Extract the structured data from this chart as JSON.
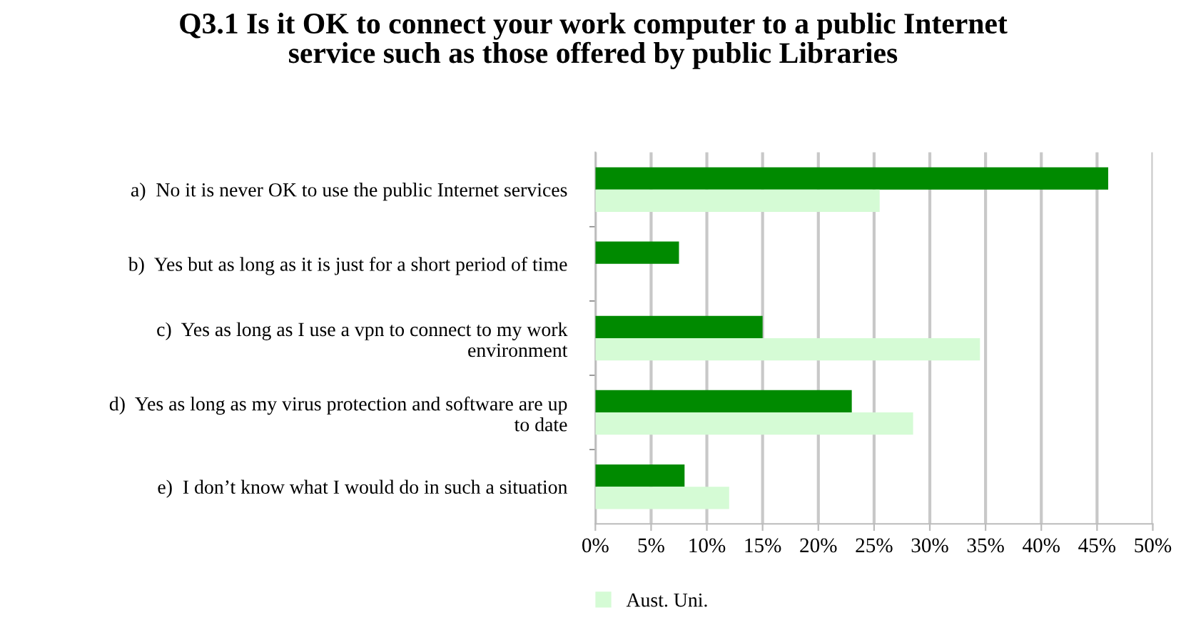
{
  "chart_data": {
    "type": "bar",
    "orientation": "horizontal",
    "title": "Q3.1 Is it OK to connect your work computer to a public Internet\nservice such as those offered by public Libraries",
    "categories": [
      "a)  No it is never OK to use the public Internet services",
      "b)  Yes but as long as it is just for a short period of time",
      "c)  Yes as long as I use a vpn to connect to my work\nenvironment",
      "d)  Yes as long as my virus protection and software are up\nto date",
      "e)  I don’t know what I would do in such a situation"
    ],
    "series": [
      {
        "color": "#008a00",
        "values": [
          46,
          7.5,
          15,
          23,
          8
        ]
      },
      {
        "name": "Aust. Uni.",
        "color": "#d5fbd5",
        "values": [
          25.5,
          null,
          34.5,
          28.5,
          12
        ]
      }
    ],
    "xlim": [
      0,
      50
    ],
    "xticks": [
      {
        "value": 0,
        "label": "0%"
      },
      {
        "value": 5,
        "label": "5%"
      },
      {
        "value": 10,
        "label": "10%"
      },
      {
        "value": 15,
        "label": "15%"
      },
      {
        "value": 20,
        "label": "20%"
      },
      {
        "value": 25,
        "label": "25%"
      },
      {
        "value": 30,
        "label": "30%"
      },
      {
        "value": 35,
        "label": "35%"
      },
      {
        "value": 40,
        "label": "40%"
      },
      {
        "value": 45,
        "label": "45%"
      },
      {
        "value": 50,
        "label": "50%"
      }
    ],
    "grid": "x",
    "legend": "bottom"
  }
}
